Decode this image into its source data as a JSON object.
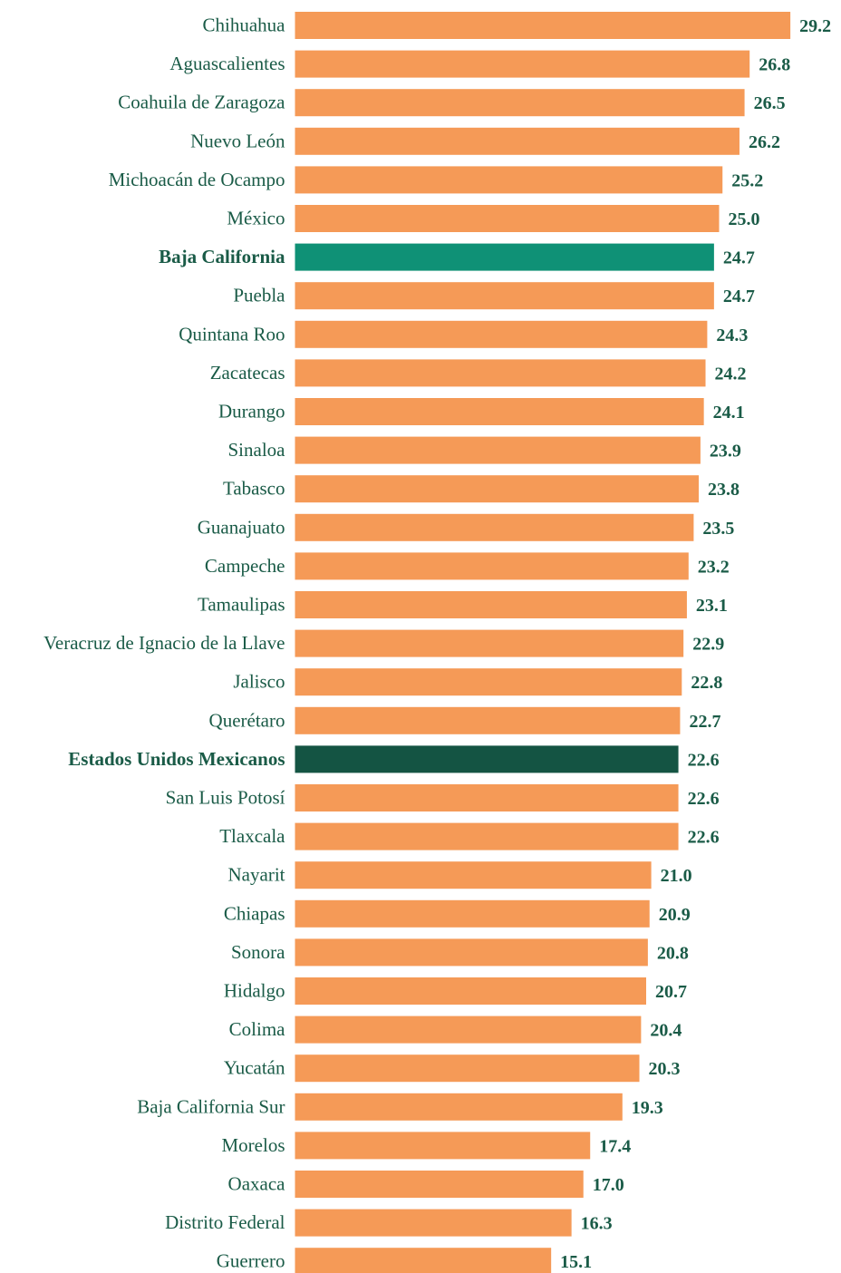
{
  "chart_data": {
    "type": "bar",
    "orientation": "horizontal",
    "title": "",
    "xlabel": "",
    "ylabel": "",
    "categories": [
      "Chihuahua",
      "Aguascalientes",
      "Coahuila de Zaragoza",
      "Nuevo León",
      "Michoacán de Ocampo",
      "México",
      "Baja California",
      "Puebla",
      "Quintana Roo",
      "Zacatecas",
      "Durango",
      "Sinaloa",
      "Tabasco",
      "Guanajuato",
      "Campeche",
      "Tamaulipas",
      "Veracruz de Ignacio de la Llave",
      "Jalisco",
      "Querétaro",
      "Estados Unidos Mexicanos",
      "San Luis Potosí",
      "Tlaxcala",
      "Nayarit",
      "Chiapas",
      "Sonora",
      "Hidalgo",
      "Colima",
      "Yucatán",
      "Baja California Sur",
      "Morelos",
      "Oaxaca",
      "Distrito Federal",
      "Guerrero"
    ],
    "values": [
      29.2,
      26.8,
      26.5,
      26.2,
      25.2,
      25.0,
      24.7,
      24.7,
      24.3,
      24.2,
      24.1,
      23.9,
      23.8,
      23.5,
      23.2,
      23.1,
      22.9,
      22.8,
      22.7,
      22.6,
      22.6,
      22.6,
      21.0,
      20.9,
      20.8,
      20.7,
      20.4,
      20.3,
      19.3,
      17.4,
      17.0,
      16.3,
      15.1
    ],
    "value_labels": [
      "29.2",
      "26.8",
      "26.5",
      "26.2",
      "25.2",
      "25.0",
      "24.7",
      "24.7",
      "24.3",
      "24.2",
      "24.1",
      "23.9",
      "23.8",
      "23.5",
      "23.2",
      "23.1",
      "22.9",
      "22.8",
      "22.7",
      "22.6",
      "22.6",
      "22.6",
      "21.0",
      "20.9",
      "20.8",
      "20.7",
      "20.4",
      "20.3",
      "19.3",
      "17.4",
      "17.0",
      "16.3",
      "15.1"
    ],
    "highlighted": {
      "Baja California": "#0f9176",
      "Estados Unidos Mexicanos": "#145443"
    },
    "colors": {
      "bar": "#f59a57",
      "label_text": "#1a5b47",
      "value_text": "#1a5b47"
    },
    "grid": false,
    "legend": "none"
  }
}
